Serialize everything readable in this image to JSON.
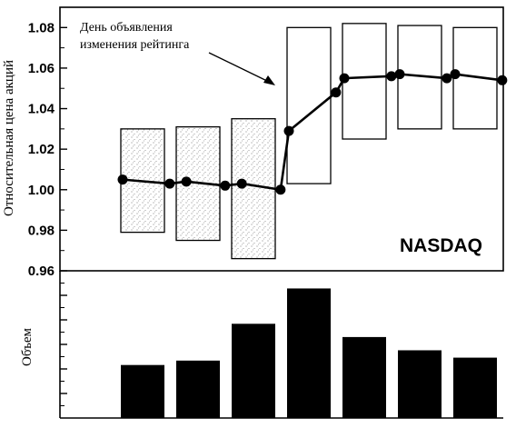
{
  "chart_data": [
    {
      "type": "candlestick-line",
      "ylabel": "Относительная цена акций",
      "ylim": [
        0.96,
        1.09
      ],
      "ytick_labels": [
        "0.96",
        "0.98",
        "1.00",
        "1.02",
        "1.04",
        "1.06",
        "1.08"
      ],
      "annotation": "День объявления изменения рейтинга",
      "index_label": "NASDAQ",
      "ranges": [
        {
          "low": 0.979,
          "high": 1.03,
          "shaded": true
        },
        {
          "low": 0.975,
          "high": 1.031,
          "shaded": true
        },
        {
          "low": 0.966,
          "high": 1.035,
          "shaded": true
        },
        {
          "low": 1.003,
          "high": 1.08,
          "shaded": false
        },
        {
          "low": 1.025,
          "high": 1.082,
          "shaded": false
        },
        {
          "low": 1.03,
          "high": 1.081,
          "shaded": false
        },
        {
          "low": 1.03,
          "high": 1.08,
          "shaded": false
        }
      ],
      "line_points": [
        {
          "x": 0.0,
          "y": 1.005
        },
        {
          "x": 0.85,
          "y": 1.003
        },
        {
          "x": 1.15,
          "y": 1.004
        },
        {
          "x": 1.85,
          "y": 1.002
        },
        {
          "x": 2.15,
          "y": 1.003
        },
        {
          "x": 2.85,
          "y": 1.0
        },
        {
          "x": 3.0,
          "y": 1.029
        },
        {
          "x": 3.85,
          "y": 1.048
        },
        {
          "x": 4.0,
          "y": 1.055
        },
        {
          "x": 4.85,
          "y": 1.056
        },
        {
          "x": 5.0,
          "y": 1.057
        },
        {
          "x": 5.85,
          "y": 1.055
        },
        {
          "x": 6.0,
          "y": 1.057
        },
        {
          "x": 6.85,
          "y": 1.054
        }
      ]
    },
    {
      "type": "bar",
      "ylabel": "Объем",
      "values": [
        0.36,
        0.39,
        0.64,
        0.88,
        0.55,
        0.46,
        0.41
      ]
    }
  ]
}
